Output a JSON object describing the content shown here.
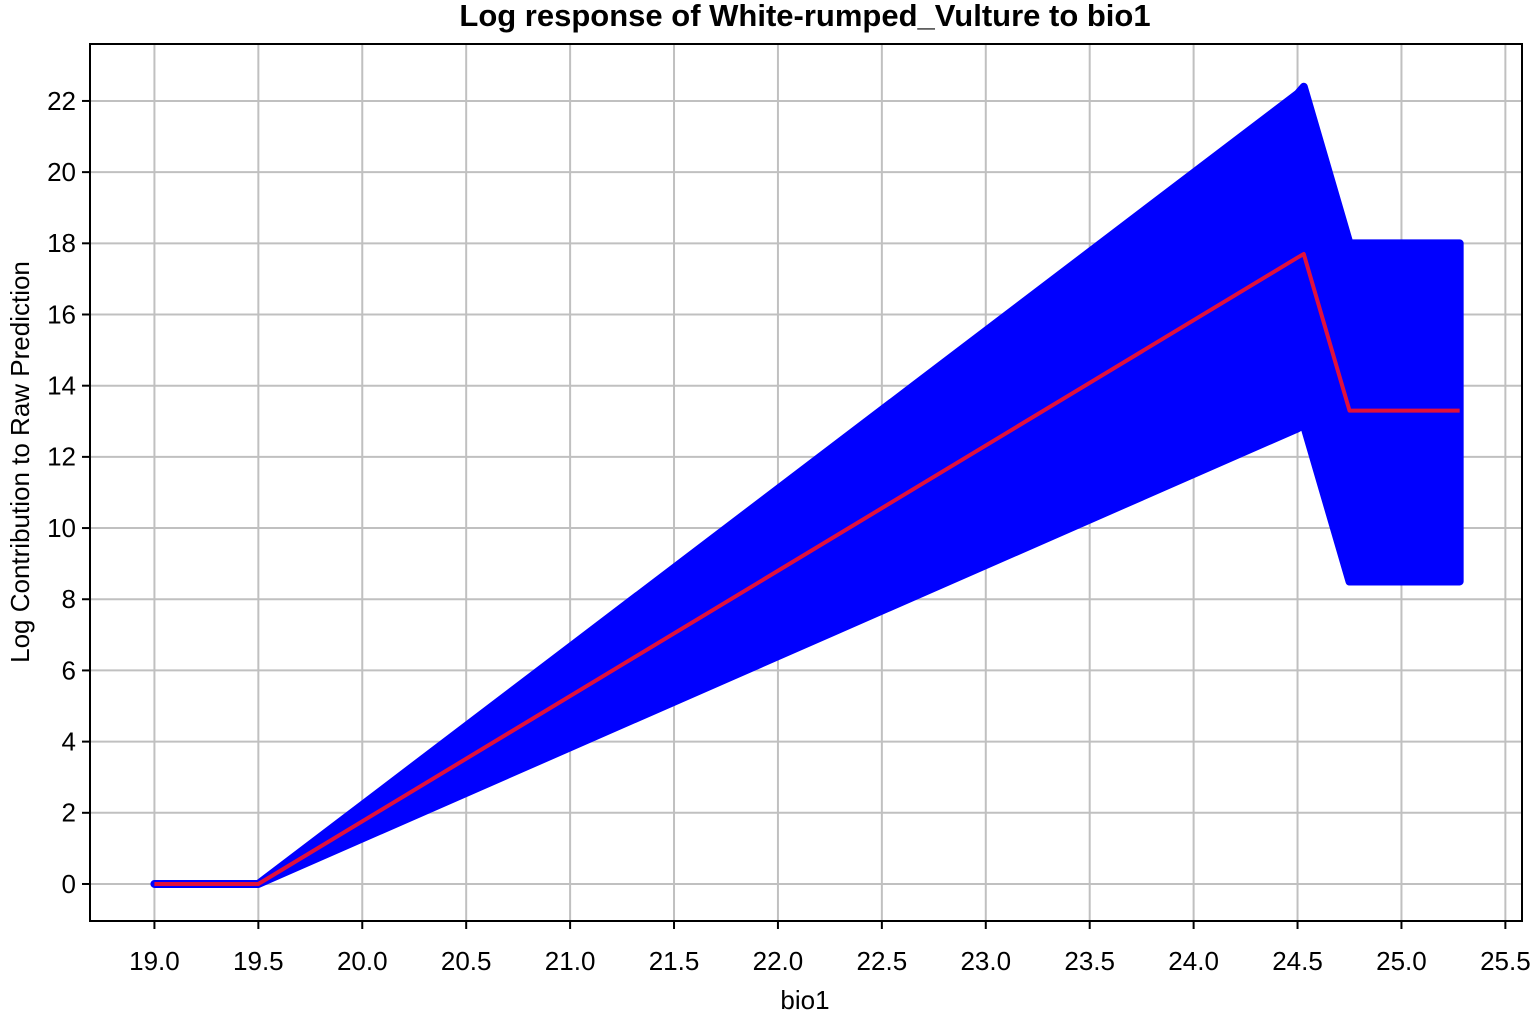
{
  "chart_data": {
    "type": "line",
    "title": "Log response of White-rumped_Vulture to bio1",
    "xlabel": "bio1",
    "ylabel": "Log Contribution to Raw Prediction",
    "x": [
      19.0,
      19.5,
      24.5,
      24.53,
      24.75,
      25.28
    ],
    "band": {
      "color": "#0000ff",
      "upper": [
        0,
        0,
        22.2,
        22.4,
        18,
        18
      ],
      "lower": [
        0,
        0,
        12.8,
        12.9,
        8.5,
        8.5
      ]
    },
    "line": {
      "color": "#e0103c",
      "values": [
        0,
        0,
        17.6,
        17.7,
        13.3,
        13.3
      ]
    },
    "xlim": [
      18.69,
      25.58
    ],
    "ylim": [
      -1.04,
      23.6
    ],
    "xticks": [
      {
        "value": 19.0,
        "label": "19.0"
      },
      {
        "value": 19.5,
        "label": "19.5"
      },
      {
        "value": 20.0,
        "label": "20.0"
      },
      {
        "value": 20.5,
        "label": "20.5"
      },
      {
        "value": 21.0,
        "label": "21.0"
      },
      {
        "value": 21.5,
        "label": "21.5"
      },
      {
        "value": 22.0,
        "label": "22.0"
      },
      {
        "value": 22.5,
        "label": "22.5"
      },
      {
        "value": 23.0,
        "label": "23.0"
      },
      {
        "value": 23.5,
        "label": "23.5"
      },
      {
        "value": 24.0,
        "label": "24.0"
      },
      {
        "value": 24.5,
        "label": "24.5"
      },
      {
        "value": 25.0,
        "label": "25.0"
      },
      {
        "value": 25.5,
        "label": "25.5"
      }
    ],
    "yticks": [
      0,
      2,
      4,
      6,
      8,
      10,
      12,
      14,
      16,
      18,
      20,
      22
    ],
    "grid": true
  }
}
